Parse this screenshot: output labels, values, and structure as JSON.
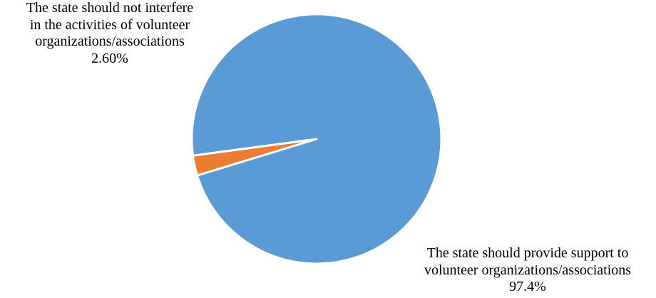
{
  "chart_data": {
    "type": "pie",
    "title": "",
    "slices": [
      {
        "label_lines": [
          "The state should not interfere",
          "in the activities of volunteer",
          "organizations/associations"
        ],
        "value": 2.6,
        "value_label": "2.60%",
        "color": "#ed7d31"
      },
      {
        "label_lines": [
          "The state should provide support to",
          "volunteer organizations/associations"
        ],
        "value": 97.4,
        "value_label": "97.4%",
        "color": "#5b9bd5"
      }
    ],
    "legend": "none",
    "slice_border_color": "#ffffff"
  }
}
